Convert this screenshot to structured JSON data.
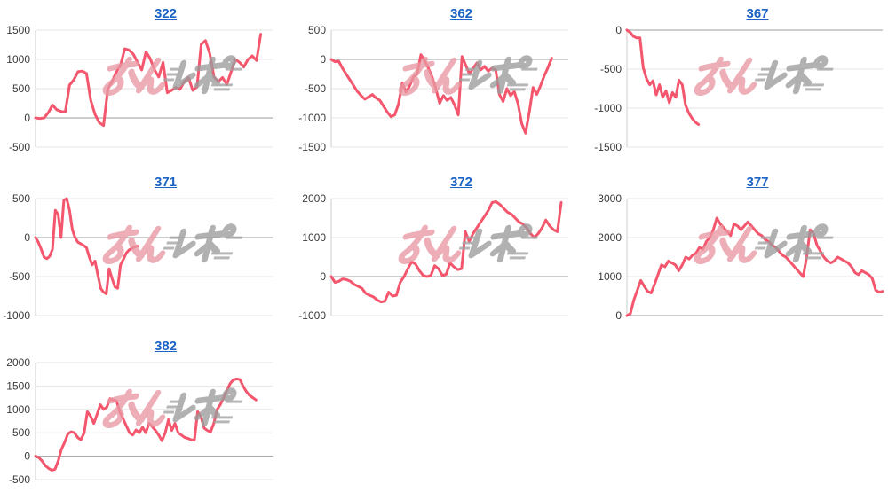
{
  "page": {
    "background": "#ffffff"
  },
  "colors": {
    "line": "#f4566e",
    "link": "#1b63c5",
    "grid": "#e6e6e6",
    "zero_line": "#9b9b9b",
    "axis_line": "#cccccc",
    "tick_text": "#3a3a3a",
    "watermark_pink": "#e998a3",
    "watermark_gray": "#9c9c9c"
  },
  "watermark": {
    "text": "みんレポ"
  },
  "chart_data": [
    {
      "type": "line",
      "title": "322",
      "ylabel": "",
      "xlabel": "",
      "ylim": [
        -500,
        1500
      ],
      "yticks": [
        1500,
        1000,
        500,
        0,
        -500
      ],
      "x_span_fraction": 0.95,
      "values": [
        0,
        -10,
        0,
        90,
        220,
        140,
        110,
        100,
        560,
        650,
        790,
        800,
        760,
        300,
        60,
        -80,
        -130,
        490,
        620,
        780,
        900,
        1180,
        1160,
        1090,
        950,
        820,
        1130,
        1010,
        820,
        700,
        950,
        430,
        470,
        520,
        490,
        620,
        690,
        470,
        530,
        1260,
        1320,
        1100,
        700,
        620,
        690,
        570,
        780,
        1000,
        950,
        870,
        1000,
        1060,
        980,
        1430
      ]
    },
    {
      "type": "line",
      "title": "362",
      "ylabel": "",
      "xlabel": "",
      "ylim": [
        -1500,
        500
      ],
      "yticks": [
        500,
        0,
        -500,
        -1000,
        -1500
      ],
      "x_span_fraction": 0.93,
      "values": [
        0,
        -40,
        -30,
        -150,
        -250,
        -350,
        -450,
        -550,
        -620,
        -680,
        -640,
        -600,
        -660,
        -700,
        -800,
        -900,
        -980,
        -950,
        -760,
        -400,
        -560,
        -450,
        -300,
        -250,
        80,
        -20,
        -150,
        -300,
        -500,
        -750,
        -620,
        -700,
        -650,
        -780,
        -950,
        50,
        -100,
        -250,
        -150,
        -60,
        -180,
        -120,
        -200,
        -150,
        -180,
        -600,
        -720,
        -500,
        -620,
        -550,
        -760,
        -1100,
        -1260,
        -900,
        -480,
        -600,
        -450,
        -280,
        -140,
        20
      ]
    },
    {
      "type": "line",
      "title": "367",
      "ylabel": "",
      "xlabel": "",
      "ylim": [
        -1500,
        0
      ],
      "yticks": [
        0,
        -500,
        -1000,
        -1500
      ],
      "x_span_fraction": 0.28,
      "values": [
        0,
        -30,
        -80,
        -100,
        -100,
        -480,
        -620,
        -700,
        -650,
        -830,
        -700,
        -860,
        -780,
        -930,
        -800,
        -860,
        -640,
        -700,
        -960,
        -1060,
        -1130,
        -1180,
        -1210
      ]
    },
    {
      "type": "line",
      "title": "371",
      "ylabel": "",
      "xlabel": "",
      "ylim": [
        -1000,
        500
      ],
      "yticks": [
        500,
        0,
        -500,
        -1000
      ],
      "x_span_fraction": 0.43,
      "values": [
        0,
        -60,
        -150,
        -250,
        -270,
        -240,
        -150,
        350,
        300,
        0,
        480,
        500,
        350,
        100,
        0,
        -60,
        -80,
        -100,
        -130,
        -250,
        -350,
        -300,
        -480,
        -650,
        -700,
        -720,
        -400,
        -520,
        -630,
        -650,
        -350,
        -280,
        -200,
        -160,
        -140,
        -120,
        -110
      ]
    },
    {
      "type": "line",
      "title": "372",
      "ylabel": "",
      "xlabel": "",
      "ylim": [
        -1000,
        2000
      ],
      "yticks": [
        2000,
        1000,
        0,
        -1000
      ],
      "x_span_fraction": 0.97,
      "values": [
        0,
        -150,
        -120,
        -60,
        -80,
        -120,
        -200,
        -250,
        -300,
        -430,
        -480,
        -520,
        -600,
        -650,
        -630,
        -400,
        -500,
        -480,
        -150,
        0,
        200,
        380,
        320,
        150,
        30,
        0,
        30,
        280,
        200,
        30,
        60,
        350,
        250,
        180,
        200,
        1150,
        900,
        1100,
        1250,
        1400,
        1550,
        1700,
        1900,
        1920,
        1850,
        1750,
        1650,
        1600,
        1500,
        1400,
        1350,
        1250,
        1100,
        1000,
        1100,
        1250,
        1450,
        1300,
        1200,
        1150,
        1900
      ]
    },
    {
      "type": "line",
      "title": "377",
      "ylabel": "",
      "xlabel": "",
      "ylim": [
        0,
        3000
      ],
      "yticks": [
        3000,
        2000,
        1000,
        0
      ],
      "x_span_fraction": 1.0,
      "values": [
        0,
        50,
        400,
        650,
        900,
        750,
        620,
        580,
        800,
        1050,
        1300,
        1250,
        1400,
        1350,
        1300,
        1150,
        1300,
        1500,
        1450,
        1550,
        1600,
        1750,
        1700,
        1900,
        2000,
        2200,
        2500,
        2350,
        2250,
        2150,
        2050,
        2350,
        2300,
        2200,
        2300,
        2400,
        2300,
        2200,
        2100,
        2050,
        1950,
        1900,
        1800,
        1750,
        1650,
        1550,
        1500,
        1400,
        1300,
        1200,
        1100,
        1000,
        1500,
        2200,
        2100,
        1800,
        1650,
        1500,
        1400,
        1350,
        1400,
        1500,
        1450,
        1400,
        1350,
        1250,
        1100,
        1050,
        1150,
        1100,
        1050,
        950,
        650,
        600,
        620
      ]
    },
    {
      "type": "line",
      "title": "382",
      "ylabel": "",
      "xlabel": "",
      "ylim": [
        -500,
        2000
      ],
      "yticks": [
        2000,
        1500,
        1000,
        500,
        0,
        -500
      ],
      "x_span_fraction": 0.93,
      "values": [
        0,
        -30,
        -100,
        -200,
        -260,
        -300,
        -280,
        -100,
        150,
        300,
        480,
        520,
        500,
        400,
        350,
        500,
        950,
        850,
        700,
        900,
        1100,
        1000,
        1050,
        1230,
        1200,
        1180,
        950,
        800,
        650,
        500,
        450,
        560,
        500,
        620,
        500,
        700,
        630,
        550,
        450,
        330,
        500,
        780,
        550,
        700,
        500,
        450,
        400,
        380,
        350,
        340,
        950,
        850,
        600,
        550,
        520,
        700,
        1000,
        1100,
        1250,
        1400,
        1550,
        1630,
        1650,
        1640,
        1500,
        1380,
        1300,
        1250,
        1200
      ]
    }
  ]
}
